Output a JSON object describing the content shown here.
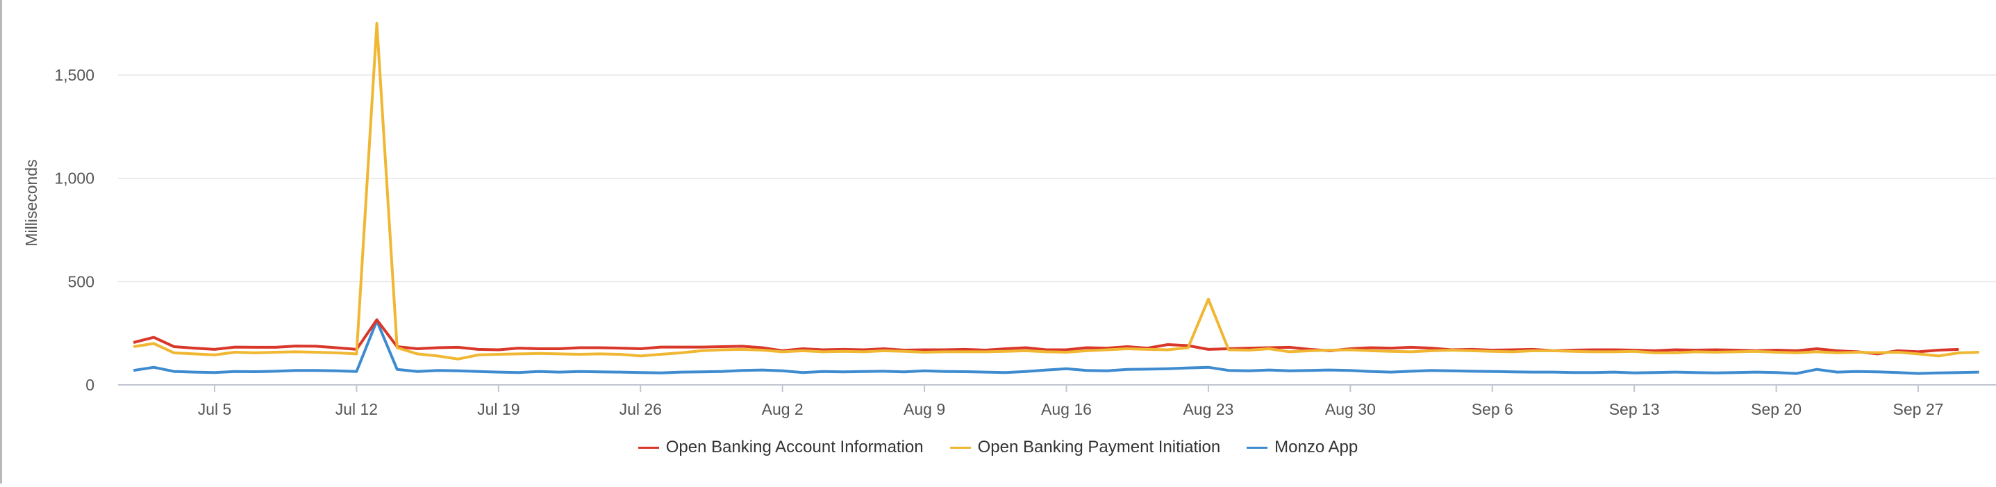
{
  "chart_data": {
    "type": "line",
    "ylabel": "Milliseconds",
    "xlabel": "",
    "ylim": [
      0,
      1750
    ],
    "y_ticks": [
      0,
      500,
      1000,
      1500
    ],
    "y_tick_labels": [
      "0",
      "500",
      "1,000",
      "1,500"
    ],
    "x_tick_labels": [
      "Jul 5",
      "Jul 12",
      "Jul 19",
      "Jul 26",
      "Aug 2",
      "Aug 9",
      "Aug 16",
      "Aug 23",
      "Aug 30",
      "Sep 6",
      "Sep 13",
      "Sep 20",
      "Sep 27"
    ],
    "x_tick_days": [
      5,
      12,
      19,
      26,
      33,
      40,
      47,
      54,
      61,
      68,
      75,
      82,
      89
    ],
    "x_start_day": 1,
    "grid": true,
    "legend_position": "bottom",
    "series": [
      {
        "name": "Open Banking Account Information",
        "color": "#d9372a",
        "values": [
          205,
          230,
          185,
          178,
          172,
          183,
          182,
          182,
          188,
          187,
          180,
          172,
          315,
          185,
          175,
          180,
          182,
          172,
          170,
          178,
          175,
          175,
          180,
          180,
          178,
          175,
          183,
          183,
          183,
          185,
          187,
          180,
          165,
          175,
          170,
          172,
          170,
          175,
          168,
          170,
          170,
          172,
          168,
          175,
          180,
          170,
          170,
          180,
          178,
          185,
          178,
          195,
          190,
          172,
          175,
          178,
          180,
          182,
          172,
          165,
          175,
          180,
          178,
          182,
          178,
          170,
          172,
          168,
          170,
          172,
          165,
          168,
          170,
          170,
          168,
          165,
          170,
          168,
          170,
          168,
          165,
          168,
          165,
          175,
          165,
          160,
          150,
          165,
          160,
          168,
          172
        ]
      },
      {
        "name": "Open Banking Payment Initiation",
        "color": "#f0b733",
        "values": [
          185,
          200,
          155,
          150,
          145,
          158,
          155,
          158,
          160,
          158,
          155,
          150,
          1750,
          180,
          150,
          140,
          125,
          145,
          148,
          150,
          152,
          150,
          148,
          150,
          148,
          140,
          148,
          155,
          165,
          170,
          172,
          168,
          160,
          165,
          160,
          162,
          160,
          165,
          162,
          158,
          160,
          160,
          160,
          162,
          165,
          160,
          158,
          165,
          170,
          175,
          172,
          170,
          180,
          415,
          170,
          168,
          175,
          160,
          165,
          168,
          170,
          165,
          162,
          160,
          165,
          168,
          165,
          162,
          160,
          165,
          165,
          162,
          160,
          160,
          162,
          155,
          155,
          160,
          158,
          160,
          162,
          158,
          155,
          160,
          155,
          158,
          156,
          158,
          150,
          140,
          155,
          158
        ]
      },
      {
        "name": "Monzo App",
        "color": "#3e8bd0",
        "values": [
          70,
          85,
          65,
          62,
          60,
          65,
          64,
          66,
          70,
          70,
          68,
          65,
          310,
          75,
          65,
          70,
          68,
          65,
          62,
          60,
          65,
          62,
          65,
          63,
          62,
          60,
          58,
          62,
          63,
          65,
          70,
          72,
          68,
          60,
          65,
          63,
          65,
          66,
          63,
          68,
          65,
          64,
          62,
          60,
          65,
          72,
          78,
          70,
          68,
          75,
          76,
          78,
          82,
          85,
          70,
          68,
          72,
          68,
          70,
          72,
          70,
          65,
          62,
          66,
          70,
          68,
          66,
          65,
          63,
          62,
          62,
          60,
          60,
          62,
          58,
          60,
          62,
          60,
          58,
          60,
          62,
          60,
          55,
          75,
          62,
          65,
          63,
          60,
          55,
          58,
          60,
          62
        ]
      }
    ]
  }
}
